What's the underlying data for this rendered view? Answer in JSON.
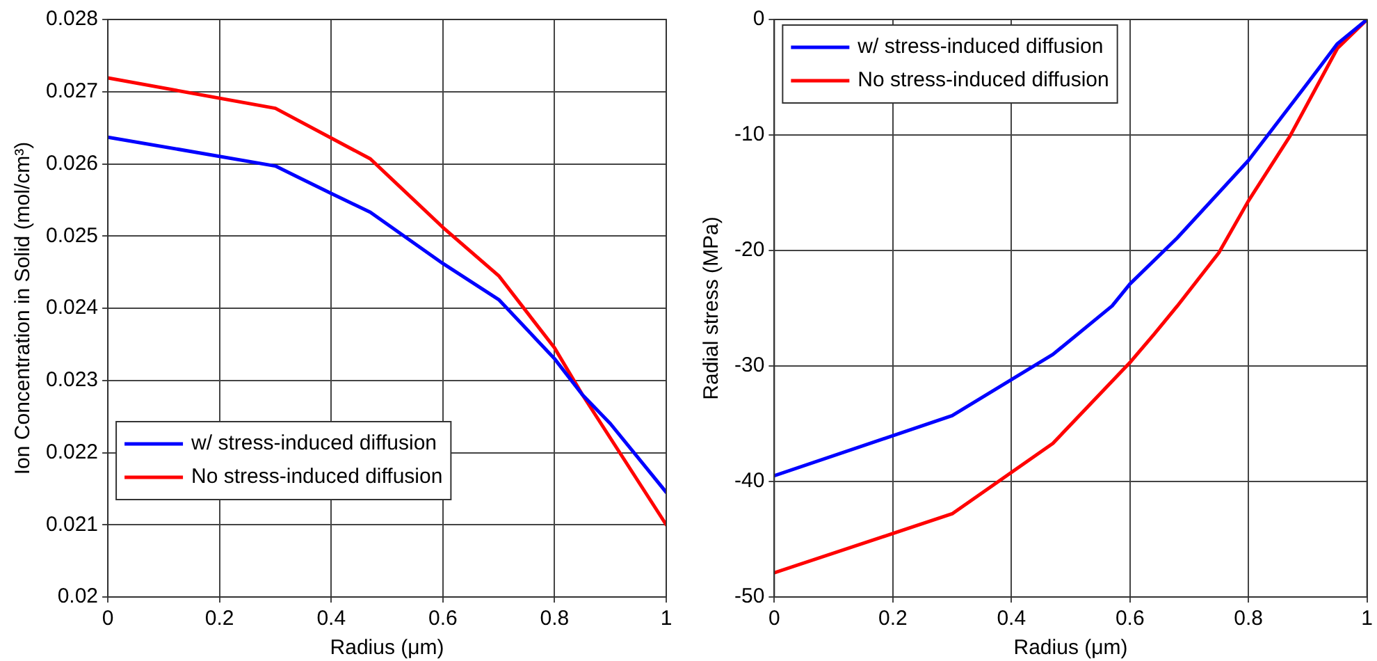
{
  "chart_data": [
    {
      "type": "line",
      "xlabel": "Radius (μm)",
      "ylabel": "Ion Concentration in Solid (mol/cm³)",
      "xlim": [
        0,
        1
      ],
      "xticks": [
        0,
        0.2,
        0.4,
        0.6,
        0.8,
        1
      ],
      "ylim": [
        0.02,
        0.028
      ],
      "yticks": [
        0.02,
        0.021,
        0.022,
        0.023,
        0.024,
        0.025,
        0.026,
        0.027,
        0.028
      ],
      "grid": true,
      "legend": "bottom left",
      "marker": "none",
      "line_style": "solid",
      "series": [
        {
          "name": "w/ stress-induced diffusion",
          "color": "#0000ff",
          "x": [
            0,
            0.3,
            0.4,
            0.47,
            0.6,
            0.7,
            0.8,
            0.85,
            0.9,
            1
          ],
          "values": [
            0.02637,
            0.02597,
            0.02559,
            0.02533,
            0.02462,
            0.02412,
            0.0233,
            0.0228,
            0.0224,
            0.02145
          ]
        },
        {
          "name": "No stress-induced diffusion",
          "color": "#ff0000",
          "x": [
            0,
            0.3,
            0.47,
            0.6,
            0.7,
            0.8,
            0.85,
            0.9,
            1
          ],
          "values": [
            0.02719,
            0.02677,
            0.02607,
            0.02512,
            0.02445,
            0.02345,
            0.0228,
            0.0222,
            0.021
          ]
        }
      ]
    },
    {
      "type": "line",
      "xlabel": "Radius (μm)",
      "ylabel": "Radial stress (MPa)",
      "xlim": [
        0,
        1
      ],
      "xticks": [
        0,
        0.2,
        0.4,
        0.6,
        0.8,
        1
      ],
      "ylim": [
        -50,
        0
      ],
      "yticks": [
        -50,
        -40,
        -30,
        -20,
        -10,
        0
      ],
      "grid": true,
      "legend": "top left",
      "marker": "none",
      "line_style": "solid",
      "series": [
        {
          "name": "w/ stress-induced diffusion",
          "color": "#0000ff",
          "x": [
            0,
            0.3,
            0.47,
            0.57,
            0.6,
            0.68,
            0.8,
            0.9,
            0.95,
            1
          ],
          "values": [
            -39.5,
            -34.3,
            -29,
            -24.8,
            -22.9,
            -18.9,
            -12.2,
            -5.5,
            -2.1,
            0
          ]
        },
        {
          "name": "No stress-induced diffusion",
          "color": "#ff0000",
          "x": [
            0,
            0.3,
            0.47,
            0.6,
            0.64,
            0.68,
            0.75,
            0.8,
            0.87,
            0.95,
            1
          ],
          "values": [
            -47.9,
            -42.8,
            -36.7,
            -29.7,
            -27.3,
            -24.8,
            -20.2,
            -15.7,
            -10.1,
            -2.5,
            0
          ]
        }
      ]
    }
  ]
}
